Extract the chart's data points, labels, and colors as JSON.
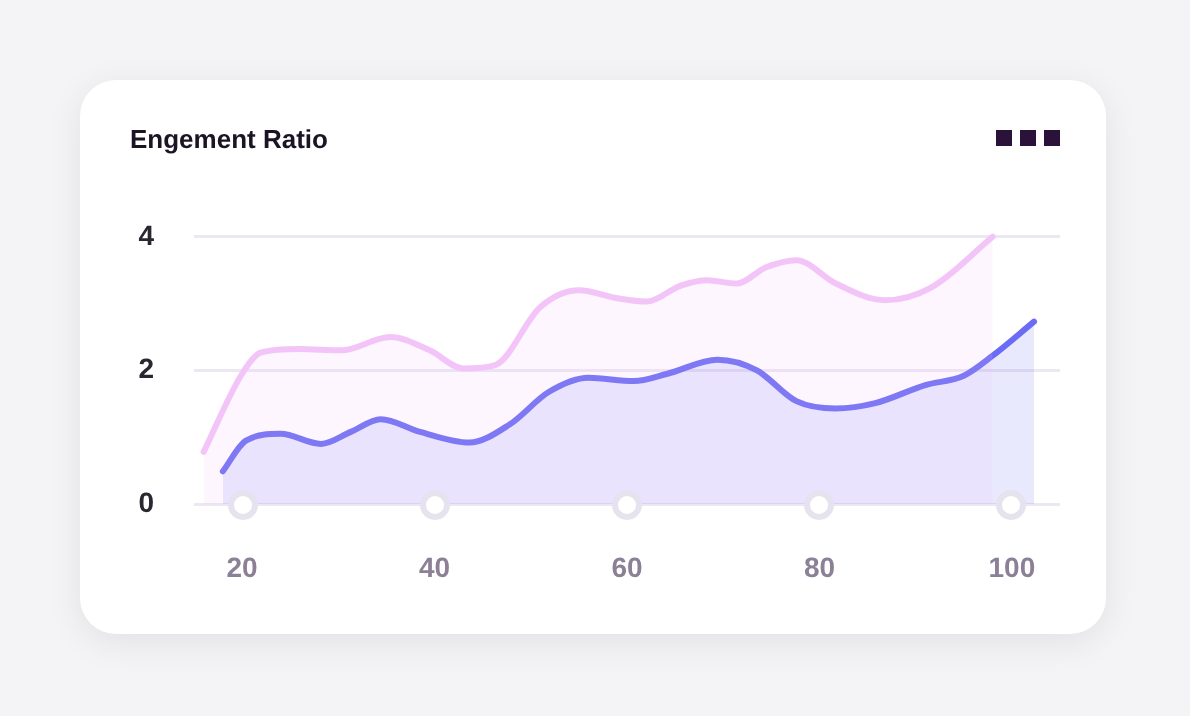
{
  "chart_data": {
    "type": "area",
    "title": "Engement Ratio",
    "series": [
      {
        "color": "#f3c4f8",
        "x": [
          16,
          20,
          22,
          26,
          30.3,
          35.4,
          39.5,
          43,
          46.3,
          51,
          55,
          59,
          62,
          65.6,
          68.3,
          71.4,
          74.4,
          77.6,
          81.7,
          86.8,
          91.6,
          98
        ],
        "values": [
          0.78,
          1.95,
          2.27,
          2.32,
          2.3,
          2.5,
          2.3,
          2.03,
          2.08,
          2.95,
          3.2,
          3.08,
          3.03,
          3.27,
          3.35,
          3.3,
          3.54,
          3.65,
          3.3,
          3.05,
          3.24,
          4.0
        ]
      },
      {
        "color": "#6b6bf5",
        "x": [
          18,
          20.4,
          24,
          28.2,
          31.3,
          34.4,
          38.5,
          43.6,
          47.8,
          51.9,
          56,
          60.7,
          64.2,
          69.4,
          73.5,
          77.6,
          81.7,
          85.8,
          91,
          95,
          98,
          102.3
        ],
        "values": [
          0.49,
          0.95,
          1.05,
          0.9,
          1.08,
          1.27,
          1.08,
          0.92,
          1.19,
          1.68,
          1.89,
          1.84,
          1.95,
          2.16,
          2.0,
          1.54,
          1.43,
          1.51,
          1.78,
          1.92,
          2.22,
          2.73
        ]
      }
    ],
    "xlim": [
      15,
      105
    ],
    "xticks": [
      20,
      40,
      60,
      80,
      100
    ],
    "ylim": [
      0,
      4
    ],
    "yticks": [
      0,
      2,
      4
    ],
    "grid": "y",
    "legend": false,
    "marker": "none"
  }
}
